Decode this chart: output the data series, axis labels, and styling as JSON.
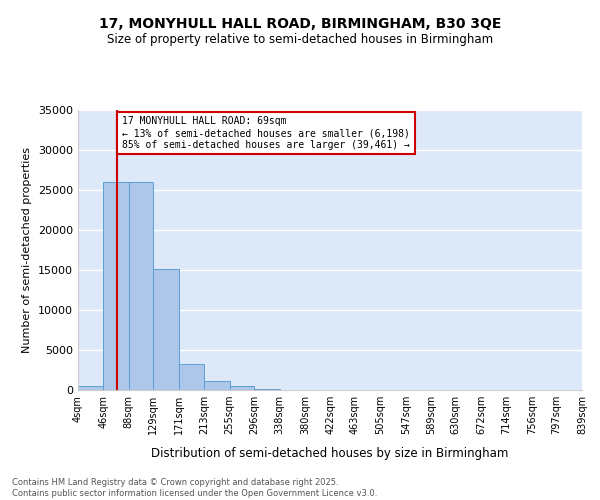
{
  "title": "17, MONYHULL HALL ROAD, BIRMINGHAM, B30 3QE",
  "subtitle": "Size of property relative to semi-detached houses in Birmingham",
  "xlabel": "Distribution of semi-detached houses by size in Birmingham",
  "ylabel": "Number of semi-detached properties",
  "bar_edges": [
    4,
    46,
    88,
    129,
    171,
    213,
    255,
    296,
    338,
    380,
    422,
    463,
    505,
    547,
    589,
    630,
    672,
    714,
    756,
    797,
    839
  ],
  "bar_heights": [
    500,
    26000,
    26000,
    15100,
    3300,
    1100,
    500,
    80,
    60,
    40,
    30,
    20,
    15,
    10,
    8,
    6,
    5,
    4,
    3,
    2
  ],
  "bar_color": "#aec6e8",
  "bar_edge_color": "#5a9fd4",
  "property_sqm": 69,
  "property_label": "17 MONYHULL HALL ROAD: 69sqm",
  "pct_smaller": 13,
  "count_smaller": 6198,
  "pct_larger": 85,
  "count_larger": 39461,
  "red_line_color": "#cc0000",
  "ylim": [
    0,
    35000
  ],
  "yticks": [
    0,
    5000,
    10000,
    15000,
    20000,
    25000,
    30000,
    35000
  ],
  "bg_color": "#dde8f8",
  "grid_color": "#ffffff",
  "annotation_box_color": "#cc0000",
  "footer_line1": "Contains HM Land Registry data © Crown copyright and database right 2025.",
  "footer_line2": "Contains public sector information licensed under the Open Government Licence v3.0."
}
